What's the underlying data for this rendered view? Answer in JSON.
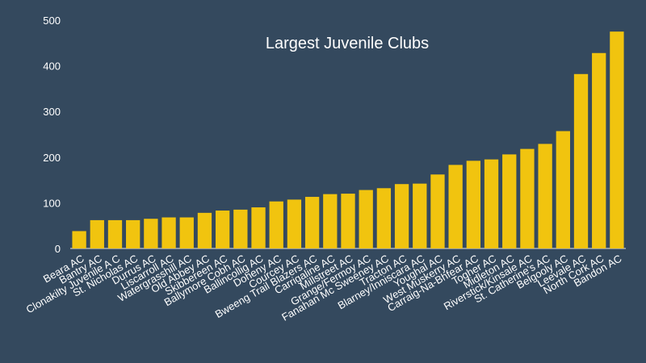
{
  "chart_data": {
    "type": "bar",
    "title": "Largest Juvenile Clubs",
    "xlabel": "",
    "ylabel": "",
    "ylim": [
      0,
      500
    ],
    "yticks": [
      0,
      100,
      200,
      300,
      400,
      500
    ],
    "grid": false,
    "bar_color": "#f1c40f",
    "background_color": "#34495e",
    "categories": [
      "Beara AC",
      "Bantry AC",
      "Clonakilty Juvenile A C",
      "St. Nicholas AC",
      "Durrus AC",
      "Liscarroll AC",
      "Watergrasshill AC",
      "Old Abbey AC",
      "Skibbereen AC",
      "Ballymore Cobh AC",
      "Ballincollig AC",
      "Doheny AC",
      "Courcey AC",
      "Bweeng Trail Blazers AC",
      "Carrigaline AC",
      "Millstreet AC",
      "Grange/Fermoy AC",
      "Fanahan Mc Sweeney AC",
      "Tracton AC",
      "Blarney/Inniscara AC",
      "Youghal AC",
      "West Muskerry AC",
      "Carraig-Na-Bhfear AC",
      "Togher AC",
      "Midleton AC",
      "Riverstick/Kinsale AC",
      "St. Catherine's AC",
      "Belgooly AC",
      "Leevale AC",
      "North Cork AC",
      "Bandon AC"
    ],
    "values": [
      38,
      62,
      62,
      62,
      65,
      68,
      68,
      78,
      83,
      85,
      90,
      103,
      107,
      113,
      119,
      120,
      128,
      132,
      141,
      142,
      162,
      183,
      192,
      195,
      206,
      218,
      229,
      257,
      382,
      428,
      475
    ]
  }
}
